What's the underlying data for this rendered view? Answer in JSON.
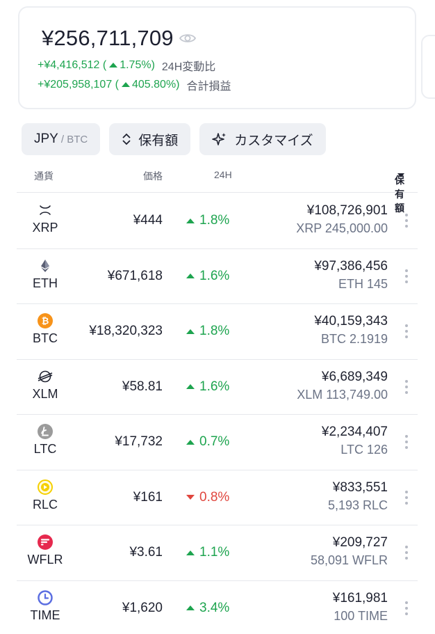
{
  "summary": {
    "total": "¥256,711,709",
    "change_24h_amount": "+¥4,416,512 (",
    "change_24h_pct": "1.75%)",
    "change_24h_label": "24H変動比",
    "total_pl_amount": "+¥205,958,107 (",
    "total_pl_pct": "405.80%)",
    "total_pl_label": "合計損益"
  },
  "chips": {
    "currency_main": "JPY",
    "currency_sub": "/ BTC",
    "sort_label": "保有額",
    "customize_label": "カスタマイズ"
  },
  "table_header": {
    "currency": "通貨",
    "price": "価格",
    "change": "24H",
    "holding": "保有額"
  },
  "rows": [
    {
      "symbol": "XRP",
      "icon": "xrp-icon",
      "price": "¥444",
      "change": "1.8%",
      "direction": "up",
      "value": "¥108,726,901",
      "qty": "XRP 245,000.00"
    },
    {
      "symbol": "ETH",
      "icon": "eth-icon",
      "price": "¥671,618",
      "change": "1.6%",
      "direction": "up",
      "value": "¥97,386,456",
      "qty": "ETH 145"
    },
    {
      "symbol": "BTC",
      "icon": "btc-icon",
      "price": "¥18,320,323",
      "change": "1.8%",
      "direction": "up",
      "value": "¥40,159,343",
      "qty": "BTC 2.1919"
    },
    {
      "symbol": "XLM",
      "icon": "xlm-icon",
      "price": "¥58.81",
      "change": "1.6%",
      "direction": "up",
      "value": "¥6,689,349",
      "qty": "XLM 113,749.00"
    },
    {
      "symbol": "LTC",
      "icon": "ltc-icon",
      "price": "¥17,732",
      "change": "0.7%",
      "direction": "up",
      "value": "¥2,234,407",
      "qty": "LTC 126"
    },
    {
      "symbol": "RLC",
      "icon": "rlc-icon",
      "price": "¥161",
      "change": "0.8%",
      "direction": "down",
      "value": "¥833,551",
      "qty": "5,193 RLC"
    },
    {
      "symbol": "WFLR",
      "icon": "wflr-icon",
      "price": "¥3.61",
      "change": "1.1%",
      "direction": "up",
      "value": "¥209,727",
      "qty": "58,091 WFLR"
    },
    {
      "symbol": "TIME",
      "icon": "time-icon",
      "price": "¥1,620",
      "change": "3.4%",
      "direction": "up",
      "value": "¥161,981",
      "qty": "100 TIME"
    }
  ],
  "colors": {
    "up": "#1ea44f",
    "down": "#e0463e",
    "btc": "#f7931a",
    "rlc": "#f5d000",
    "wflr": "#e6294e",
    "time": "#5b6ee1"
  }
}
